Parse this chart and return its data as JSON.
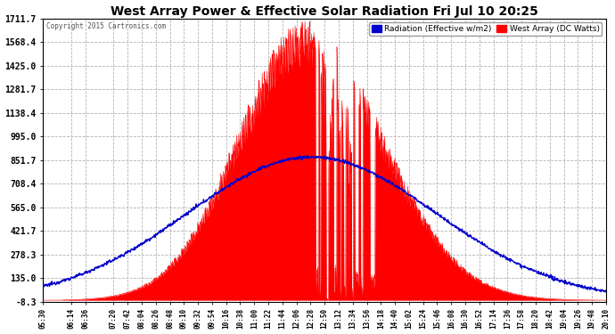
{
  "title": "West Array Power & Effective Solar Radiation Fri Jul 10 20:25",
  "copyright": "Copyright 2015 Cartronics.com",
  "legend_blue": "Radiation (Effective w/m2)",
  "legend_red": "West Array (DC Watts)",
  "background_color": "#ffffff",
  "plot_bg_color": "#ffffff",
  "title_color": "#000000",
  "yticks": [
    -8.3,
    135.0,
    278.3,
    421.7,
    565.0,
    708.4,
    851.7,
    995.0,
    1138.4,
    1281.7,
    1425.0,
    1568.4,
    1711.7
  ],
  "ymin": -8.3,
  "ymax": 1711.7,
  "grid_color": "#aaaaaa",
  "grid_style": "--",
  "red_color": "#ff0000",
  "blue_color": "#0000cc",
  "text_color": "#000000",
  "copyright_color": "#555555",
  "xtick_labels": [
    "05:30",
    "06:14",
    "06:36",
    "07:20",
    "07:42",
    "08:04",
    "08:26",
    "08:48",
    "09:10",
    "09:32",
    "09:54",
    "10:16",
    "10:38",
    "11:00",
    "11:22",
    "11:44",
    "12:06",
    "12:28",
    "12:50",
    "13:12",
    "13:34",
    "13:56",
    "14:18",
    "14:40",
    "15:02",
    "15:24",
    "15:46",
    "16:08",
    "16:30",
    "16:52",
    "17:14",
    "17:36",
    "17:58",
    "18:20",
    "18:42",
    "19:04",
    "19:26",
    "19:48",
    "20:10"
  ]
}
